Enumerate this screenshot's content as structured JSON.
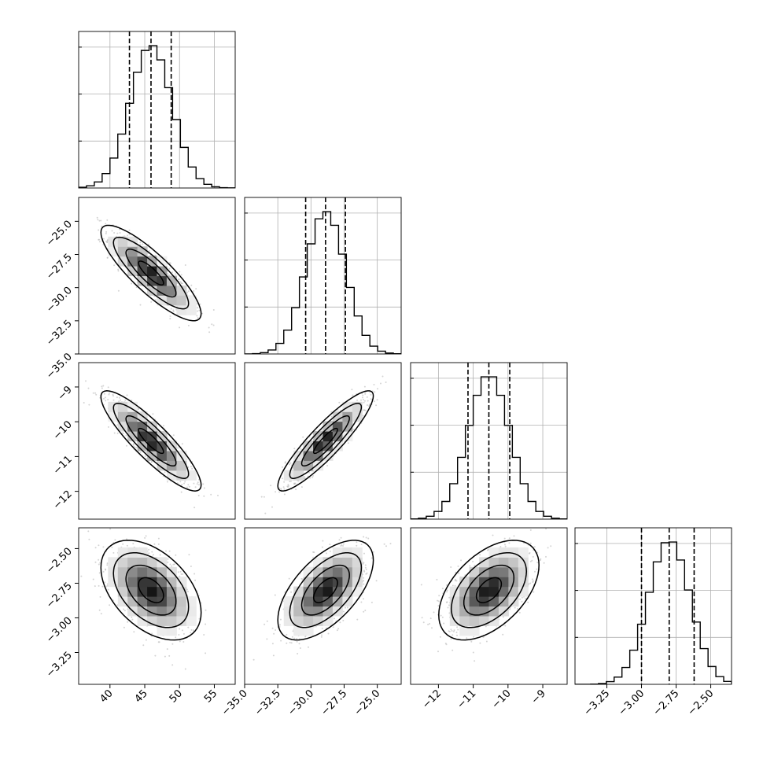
{
  "chart_data": {
    "type": "corner",
    "parameters": [
      {
        "index": 0,
        "range": [
          35.5,
          58.0
        ],
        "ticks": [
          40,
          45,
          50,
          55
        ],
        "tick_labels": [
          "40",
          "45",
          "50",
          "55"
        ],
        "quantiles": [
          42.8,
          45.9,
          48.8
        ],
        "mean": 45.9,
        "sd": 3.0
      },
      {
        "index": 1,
        "range": [
          -35.0,
          -23.2
        ],
        "ticks": [
          -35.0,
          -32.5,
          -30.0,
          -27.5,
          -25.0
        ],
        "tick_labels": [
          "−35.0",
          "−32.5",
          "−30.0",
          "−27.5",
          "−25.0"
        ],
        "quantiles": [
          -30.4,
          -28.9,
          -27.4
        ],
        "mean": -28.9,
        "sd": 1.5
      },
      {
        "index": 2,
        "range": [
          -12.8,
          -8.3
        ],
        "ticks": [
          -12,
          -11,
          -10,
          -9
        ],
        "tick_labels": [
          "−12",
          "−11",
          "−10",
          "−9"
        ],
        "quantiles": [
          -11.15,
          -10.55,
          -9.95
        ],
        "mean": -10.55,
        "sd": 0.6
      },
      {
        "index": 3,
        "range": [
          -3.48,
          -2.35
        ],
        "ticks": [
          -3.25,
          -3.0,
          -2.75,
          -2.5
        ],
        "tick_labels": [
          "−3.25",
          "−3.00",
          "−2.75",
          "−2.50"
        ],
        "quantiles": [
          -3.0,
          -2.8,
          -2.62
        ],
        "mean": -2.8,
        "sd": 0.15
      }
    ],
    "correlations": [
      {
        "pair": [
          0,
          1
        ],
        "rho": -0.85
      },
      {
        "pair": [
          0,
          2
        ],
        "rho": -0.88
      },
      {
        "pair": [
          1,
          2
        ],
        "rho": 0.9
      },
      {
        "pair": [
          0,
          3
        ],
        "rho": -0.45
      },
      {
        "pair": [
          1,
          3
        ],
        "rho": 0.6
      },
      {
        "pair": [
          2,
          3
        ],
        "rho": 0.5
      }
    ],
    "histogram_bins": 20,
    "contour_levels_sigma": [
      0.5,
      1.0,
      1.5,
      2.0
    ],
    "grid": true,
    "colors": {
      "line": "#000000",
      "points": "#b8b8b8",
      "grid": "#b0b0b0"
    }
  }
}
